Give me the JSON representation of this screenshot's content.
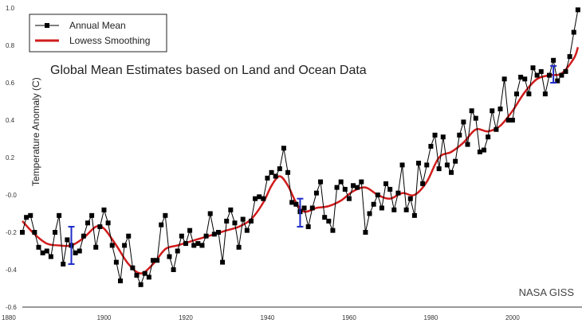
{
  "chart_data": {
    "type": "line",
    "title": "Global Mean Estimates based on Land and Ocean Data",
    "credit": "NASA GISS",
    "ylabel": "Temperature Anomaly (C)",
    "xlabel": "",
    "xlim": [
      1880,
      2017
    ],
    "ylim": [
      -0.6,
      1.0
    ],
    "x_ticks": [
      "1880",
      "1900",
      "1920",
      "1940",
      "1960",
      "1980",
      "2000"
    ],
    "y_ticks": [
      "-0.6",
      "-0.4",
      "-0.2",
      "-0.0",
      "0.2",
      "0.4",
      "0.6",
      "0.8",
      "1.0"
    ],
    "grid": false,
    "legend_position": "top-left",
    "legend": [
      "Annual Mean",
      "Lowess Smoothing"
    ],
    "series": [
      {
        "name": "Annual Mean",
        "color": "#000000",
        "x": [
          1880,
          1881,
          1882,
          1883,
          1884,
          1885,
          1886,
          1887,
          1888,
          1889,
          1890,
          1891,
          1892,
          1893,
          1894,
          1895,
          1896,
          1897,
          1898,
          1899,
          1900,
          1901,
          1902,
          1903,
          1904,
          1905,
          1906,
          1907,
          1908,
          1909,
          1910,
          1911,
          1912,
          1913,
          1914,
          1915,
          1916,
          1917,
          1918,
          1919,
          1920,
          1921,
          1922,
          1923,
          1924,
          1925,
          1926,
          1927,
          1928,
          1929,
          1930,
          1931,
          1932,
          1933,
          1934,
          1935,
          1936,
          1937,
          1938,
          1939,
          1940,
          1941,
          1942,
          1943,
          1944,
          1945,
          1946,
          1947,
          1948,
          1949,
          1950,
          1951,
          1952,
          1953,
          1954,
          1955,
          1956,
          1957,
          1958,
          1959,
          1960,
          1961,
          1962,
          1963,
          1964,
          1965,
          1966,
          1967,
          1968,
          1969,
          1970,
          1971,
          1972,
          1973,
          1974,
          1975,
          1976,
          1977,
          1978,
          1979,
          1980,
          1981,
          1982,
          1983,
          1984,
          1985,
          1986,
          1987,
          1988,
          1989,
          1990,
          1991,
          1992,
          1993,
          1994,
          1995,
          1996,
          1997,
          1998,
          1999,
          2000,
          2001,
          2002,
          2003,
          2004,
          2005,
          2006,
          2007,
          2008,
          2009,
          2010,
          2011,
          2012,
          2013,
          2014,
          2015,
          2016
        ],
        "values": [
          -0.2,
          -0.12,
          -0.11,
          -0.2,
          -0.28,
          -0.31,
          -0.3,
          -0.33,
          -0.2,
          -0.11,
          -0.37,
          -0.24,
          -0.27,
          -0.31,
          -0.3,
          -0.22,
          -0.15,
          -0.11,
          -0.28,
          -0.17,
          -0.08,
          -0.15,
          -0.27,
          -0.36,
          -0.46,
          -0.27,
          -0.22,
          -0.39,
          -0.43,
          -0.48,
          -0.42,
          -0.44,
          -0.35,
          -0.35,
          -0.16,
          -0.11,
          -0.33,
          -0.4,
          -0.3,
          -0.22,
          -0.26,
          -0.19,
          -0.27,
          -0.26,
          -0.27,
          -0.22,
          -0.1,
          -0.21,
          -0.2,
          -0.36,
          -0.14,
          -0.08,
          -0.15,
          -0.28,
          -0.13,
          -0.19,
          -0.14,
          -0.02,
          -0.01,
          -0.02,
          0.09,
          0.12,
          0.1,
          0.14,
          0.25,
          0.12,
          -0.04,
          -0.05,
          -0.09,
          -0.07,
          -0.17,
          -0.07,
          0.01,
          0.07,
          -0.12,
          -0.14,
          -0.19,
          0.04,
          0.07,
          0.03,
          -0.02,
          0.05,
          0.04,
          0.07,
          -0.2,
          -0.1,
          -0.05,
          0,
          -0.07,
          0.06,
          0.03,
          -0.08,
          0.01,
          0.16,
          -0.08,
          -0.02,
          -0.11,
          0.17,
          0.06,
          0.16,
          0.26,
          0.32,
          0.14,
          0.31,
          0.16,
          0.12,
          0.18,
          0.32,
          0.39,
          0.27,
          0.45,
          0.41,
          0.23,
          0.24,
          0.31,
          0.45,
          0.35,
          0.46,
          0.62,
          0.4,
          0.4,
          0.54,
          0.63,
          0.62,
          0.54,
          0.68,
          0.64,
          0.66,
          0.54,
          0.64,
          0.72,
          0.61,
          0.64,
          0.66,
          0.74,
          0.87,
          0.99
        ]
      },
      {
        "name": "Lowess Smoothing",
        "color": "#d01c1c",
        "x": [
          1880,
          1883,
          1886,
          1889,
          1892,
          1895,
          1898,
          1900,
          1903,
          1906,
          1909,
          1912,
          1915,
          1918,
          1921,
          1924,
          1927,
          1930,
          1933,
          1936,
          1939,
          1941,
          1943,
          1945,
          1947,
          1949,
          1952,
          1955,
          1958,
          1961,
          1964,
          1967,
          1970,
          1973,
          1976,
          1979,
          1982,
          1985,
          1988,
          1991,
          1994,
          1997,
          2000,
          2003,
          2006,
          2009,
          2012,
          2015,
          2016
        ],
        "values": [
          -0.14,
          -0.21,
          -0.26,
          -0.27,
          -0.27,
          -0.23,
          -0.17,
          -0.18,
          -0.27,
          -0.37,
          -0.42,
          -0.37,
          -0.29,
          -0.27,
          -0.25,
          -0.23,
          -0.21,
          -0.19,
          -0.17,
          -0.13,
          -0.04,
          0.05,
          0.1,
          0.05,
          -0.04,
          -0.09,
          -0.07,
          -0.06,
          -0.03,
          0.02,
          0.04,
          0.0,
          -0.02,
          0.01,
          0.0,
          0.07,
          0.2,
          0.23,
          0.28,
          0.35,
          0.34,
          0.37,
          0.45,
          0.55,
          0.62,
          0.64,
          0.65,
          0.73,
          0.79
        ]
      }
    ],
    "error_bars": {
      "color": "#1f2bc7",
      "items": [
        {
          "x": 1892,
          "low": -0.37,
          "high": -0.17
        },
        {
          "x": 1948,
          "low": -0.17,
          "high": -0.02
        },
        {
          "x": 2010,
          "low": 0.6,
          "high": 0.69
        }
      ]
    }
  }
}
